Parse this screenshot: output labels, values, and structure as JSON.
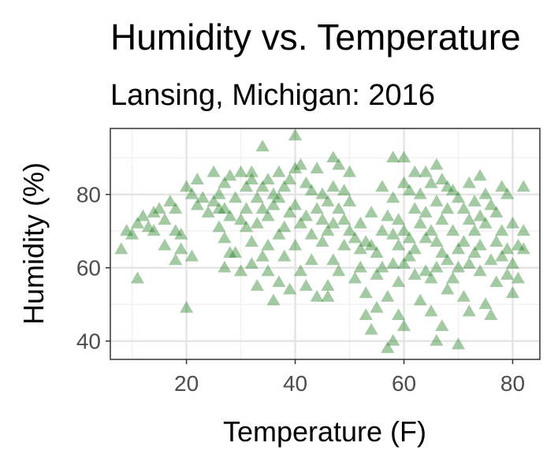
{
  "chart_data": {
    "type": "scatter",
    "title": "Humidity vs. Temperature",
    "subtitle": "Lansing, Michigan: 2016",
    "xlabel": "Temperature (F)",
    "ylabel": "Humidity (%)",
    "xlim": [
      6,
      85
    ],
    "ylim": [
      35,
      98
    ],
    "x_ticks": [
      20,
      40,
      60,
      80
    ],
    "y_ticks": [
      40,
      60,
      80
    ],
    "x_tick_labels": [
      "20",
      "40",
      "60",
      "80"
    ],
    "y_tick_labels": [
      "40",
      "60",
      "80"
    ],
    "grid": true,
    "marker": "triangle",
    "color": "#1a7a1a",
    "alpha": 0.4,
    "points": [
      [
        8,
        65
      ],
      [
        9,
        70
      ],
      [
        10,
        69
      ],
      [
        11,
        57
      ],
      [
        11,
        72
      ],
      [
        12,
        74
      ],
      [
        13,
        71
      ],
      [
        14,
        75
      ],
      [
        14,
        70
      ],
      [
        15,
        76
      ],
      [
        16,
        73
      ],
      [
        16,
        66
      ],
      [
        17,
        78
      ],
      [
        18,
        70
      ],
      [
        18,
        62
      ],
      [
        18,
        76
      ],
      [
        19,
        69
      ],
      [
        19,
        65
      ],
      [
        20,
        49
      ],
      [
        20,
        82
      ],
      [
        21,
        80
      ],
      [
        21,
        63
      ],
      [
        22,
        84
      ],
      [
        22,
        77
      ],
      [
        23,
        79
      ],
      [
        24,
        75
      ],
      [
        25,
        78
      ],
      [
        25,
        86
      ],
      [
        26,
        76
      ],
      [
        26,
        71
      ],
      [
        26,
        80
      ],
      [
        27,
        76
      ],
      [
        27,
        83
      ],
      [
        27,
        68
      ],
      [
        27,
        60
      ],
      [
        28,
        85
      ],
      [
        28,
        74
      ],
      [
        28,
        64
      ],
      [
        29,
        79
      ],
      [
        29,
        64
      ],
      [
        30,
        86
      ],
      [
        30,
        73
      ],
      [
        30,
        59
      ],
      [
        31,
        82
      ],
      [
        31,
        71
      ],
      [
        31,
        76
      ],
      [
        32,
        84
      ],
      [
        32,
        61
      ],
      [
        32,
        67
      ],
      [
        32,
        86
      ],
      [
        33,
        79
      ],
      [
        33,
        72
      ],
      [
        33,
        55
      ],
      [
        34,
        93
      ],
      [
        34,
        76
      ],
      [
        34,
        82
      ],
      [
        34,
        63
      ],
      [
        35,
        74
      ],
      [
        35,
        84
      ],
      [
        35,
        66
      ],
      [
        35,
        59
      ],
      [
        36,
        80
      ],
      [
        36,
        77
      ],
      [
        36,
        51
      ],
      [
        37,
        86
      ],
      [
        37,
        79
      ],
      [
        37,
        69
      ],
      [
        37,
        56
      ],
      [
        38,
        82
      ],
      [
        38,
        71
      ],
      [
        38,
        63
      ],
      [
        39,
        84
      ],
      [
        39,
        75
      ],
      [
        39,
        54
      ],
      [
        40,
        96
      ],
      [
        40,
        87
      ],
      [
        40,
        77
      ],
      [
        40,
        66
      ],
      [
        41,
        88
      ],
      [
        41,
        72
      ],
      [
        41,
        59
      ],
      [
        42,
        83
      ],
      [
        42,
        74
      ],
      [
        42,
        55
      ],
      [
        43,
        81
      ],
      [
        43,
        69
      ],
      [
        43,
        62
      ],
      [
        44,
        87
      ],
      [
        44,
        76
      ],
      [
        44,
        52
      ],
      [
        45,
        80
      ],
      [
        45,
        73
      ],
      [
        45,
        67
      ],
      [
        46,
        78
      ],
      [
        46,
        70
      ],
      [
        46,
        55
      ],
      [
        46,
        52
      ],
      [
        47,
        90
      ],
      [
        47,
        82
      ],
      [
        47,
        72
      ],
      [
        47,
        62
      ],
      [
        48,
        88
      ],
      [
        48,
        76
      ],
      [
        48,
        59
      ],
      [
        49,
        81
      ],
      [
        49,
        73
      ],
      [
        49,
        66
      ],
      [
        50,
        86
      ],
      [
        50,
        78
      ],
      [
        50,
        70
      ],
      [
        51,
        68
      ],
      [
        51,
        57
      ],
      [
        52,
        72
      ],
      [
        52,
        65
      ],
      [
        52,
        60
      ],
      [
        53,
        67
      ],
      [
        53,
        53
      ],
      [
        53,
        47
      ],
      [
        54,
        75
      ],
      [
        54,
        66
      ],
      [
        54,
        43
      ],
      [
        55,
        64
      ],
      [
        55,
        58
      ],
      [
        55,
        49
      ],
      [
        56,
        82
      ],
      [
        56,
        70
      ],
      [
        56,
        60
      ],
      [
        57,
        74
      ],
      [
        57,
        52
      ],
      [
        57,
        38
      ],
      [
        58,
        90
      ],
      [
        58,
        79
      ],
      [
        58,
        69
      ],
      [
        58,
        61
      ],
      [
        58,
        40
      ],
      [
        59,
        73
      ],
      [
        59,
        66
      ],
      [
        59,
        56
      ],
      [
        59,
        47
      ],
      [
        60,
        90
      ],
      [
        60,
        83
      ],
      [
        60,
        70
      ],
      [
        60,
        61
      ],
      [
        60,
        44
      ],
      [
        61,
        81
      ],
      [
        61,
        68
      ],
      [
        61,
        63
      ],
      [
        62,
        86
      ],
      [
        62,
        76
      ],
      [
        62,
        65
      ],
      [
        62,
        58
      ],
      [
        63,
        80
      ],
      [
        63,
        72
      ],
      [
        63,
        51
      ],
      [
        64,
        86
      ],
      [
        64,
        75
      ],
      [
        64,
        68
      ],
      [
        64,
        59
      ],
      [
        65,
        83
      ],
      [
        65,
        70
      ],
      [
        65,
        57
      ],
      [
        65,
        48
      ],
      [
        66,
        88
      ],
      [
        66,
        78
      ],
      [
        66,
        67
      ],
      [
        66,
        60
      ],
      [
        66,
        40
      ],
      [
        67,
        84
      ],
      [
        67,
        73
      ],
      [
        67,
        64
      ],
      [
        67,
        44
      ],
      [
        68,
        82
      ],
      [
        68,
        76
      ],
      [
        68,
        62
      ],
      [
        68,
        54
      ],
      [
        69,
        81
      ],
      [
        69,
        70
      ],
      [
        69,
        57
      ],
      [
        70,
        79
      ],
      [
        70,
        65
      ],
      [
        70,
        60
      ],
      [
        70,
        39
      ],
      [
        71,
        76
      ],
      [
        71,
        67
      ],
      [
        71,
        52
      ],
      [
        72,
        83
      ],
      [
        72,
        73
      ],
      [
        72,
        61
      ],
      [
        72,
        48
      ],
      [
        73,
        78
      ],
      [
        73,
        70
      ],
      [
        73,
        64
      ],
      [
        74,
        85
      ],
      [
        74,
        74
      ],
      [
        74,
        66
      ],
      [
        74,
        59
      ],
      [
        75,
        80
      ],
      [
        75,
        72
      ],
      [
        75,
        50
      ],
      [
        76,
        77
      ],
      [
        76,
        62
      ],
      [
        76,
        47
      ],
      [
        77,
        75
      ],
      [
        77,
        67
      ],
      [
        77,
        56
      ],
      [
        78,
        82
      ],
      [
        78,
        70
      ],
      [
        78,
        63
      ],
      [
        79,
        80
      ],
      [
        79,
        65
      ],
      [
        79,
        58
      ],
      [
        80,
        72
      ],
      [
        80,
        61
      ],
      [
        80,
        53
      ],
      [
        81,
        66
      ],
      [
        81,
        57
      ],
      [
        82,
        82
      ],
      [
        82,
        70
      ],
      [
        82,
        65
      ]
    ]
  }
}
